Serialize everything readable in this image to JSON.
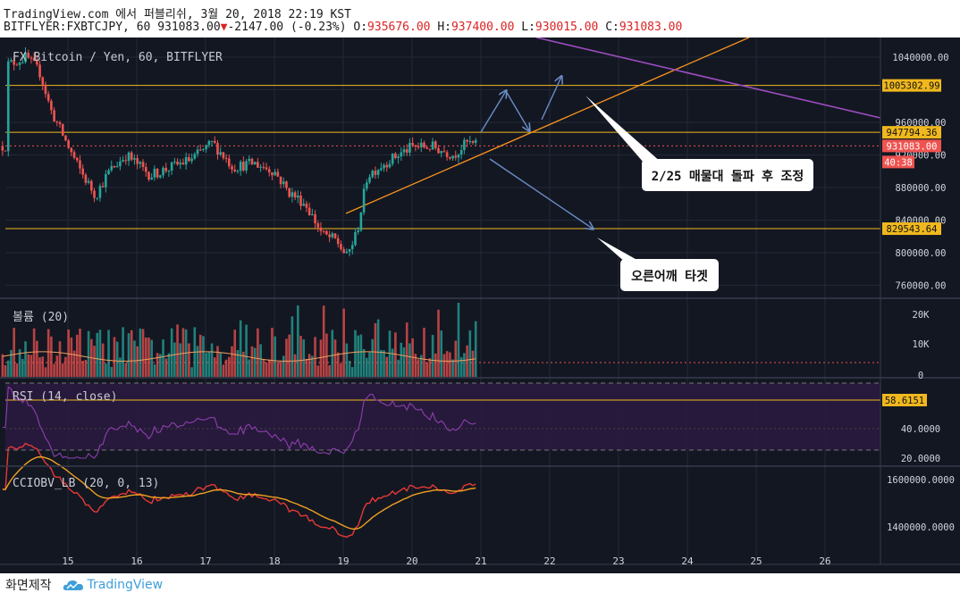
{
  "header": {
    "line1": "TradingView.com 에서 퍼블리쉬, 3월 20, 2018 22:19 KST",
    "symbol": "BITFLYER:FXBTCJPY, 60",
    "last": "931083.00",
    "change": "-2147.00",
    "change_pct": "(-0.23%)",
    "open_label": "O:",
    "open": "935676.00",
    "high_label": "H:",
    "high": "937400.00",
    "low_label": "L:",
    "low": "930015.00",
    "close_label": "C:",
    "close": "931083.00"
  },
  "colors": {
    "background": "#131722",
    "up": "#26a69a",
    "down": "#ef5350",
    "hline": "#f0b81e",
    "trend": "#f7921e",
    "purple": "#9c4dbf",
    "arrow": "#6b8dc6",
    "rsi": "#8e3fb0",
    "obv_red": "#e53935",
    "obv_green": "#4caf50",
    "obv_orange": "#f0a020"
  },
  "price_pane": {
    "title": "FX Bitcoin / Yen, 60, BITFLYER",
    "price_ticks": [
      "1040000.00",
      "960000.00",
      "920000.00",
      "880000.00",
      "840000.00",
      "800000.00",
      "760000.00"
    ],
    "hlines": [
      {
        "label": "1005302.99"
      },
      {
        "label": "947794.36"
      },
      {
        "label": "829543.64"
      }
    ],
    "last_price_label": "931083.00",
    "countdown": "40:38",
    "annotations": [
      "2/25 매물대 돌파 후 조정",
      "오른어깨 타겟"
    ]
  },
  "volume_pane": {
    "title": "볼륨 (20)",
    "ticks": [
      "20K",
      "10K",
      "0"
    ]
  },
  "rsi_pane": {
    "title": "RSI (14, close)",
    "value_label": "58.6151",
    "ticks": [
      "40.0000",
      "20.0000"
    ]
  },
  "obv_pane": {
    "title": "CCIOBV_LB (20, 0, 13)",
    "ticks": [
      "1600000.0000",
      "1400000.0000"
    ]
  },
  "time_axis": {
    "labels": [
      "15",
      "16",
      "17",
      "18",
      "19",
      "20",
      "21",
      "22",
      "23",
      "24",
      "25",
      "26"
    ]
  },
  "chart_data": {
    "type": "candlestick",
    "title": "FX Bitcoin / Yen, 60, BITFLYER",
    "x_axis_days": [
      "15",
      "16",
      "17",
      "18",
      "19",
      "20",
      "21",
      "22",
      "23",
      "24",
      "25",
      "26"
    ],
    "price_range": [
      740000,
      1060000
    ],
    "close_path": [
      {
        "day": 14.1,
        "close": 1030000
      },
      {
        "day": 14.4,
        "close": 1040000
      },
      {
        "day": 14.6,
        "close": 1020000
      },
      {
        "day": 14.75,
        "close": 975000
      },
      {
        "day": 14.95,
        "close": 940000
      },
      {
        "day": 15.15,
        "close": 905000
      },
      {
        "day": 15.4,
        "close": 870000
      },
      {
        "day": 15.6,
        "close": 900000
      },
      {
        "day": 15.85,
        "close": 920000
      },
      {
        "day": 16.2,
        "close": 895000
      },
      {
        "day": 16.5,
        "close": 905000
      },
      {
        "day": 16.8,
        "close": 915000
      },
      {
        "day": 17.1,
        "close": 935000
      },
      {
        "day": 17.4,
        "close": 905000
      },
      {
        "day": 17.7,
        "close": 910000
      },
      {
        "day": 18.0,
        "close": 900000
      },
      {
        "day": 18.2,
        "close": 875000
      },
      {
        "day": 18.45,
        "close": 860000
      },
      {
        "day": 18.7,
        "close": 822000
      },
      {
        "day": 18.9,
        "close": 815000
      },
      {
        "day": 19.05,
        "close": 795000
      },
      {
        "day": 19.2,
        "close": 825000
      },
      {
        "day": 19.35,
        "close": 895000
      },
      {
        "day": 19.6,
        "close": 910000
      },
      {
        "day": 19.8,
        "close": 920000
      },
      {
        "day": 20.0,
        "close": 930000
      },
      {
        "day": 20.3,
        "close": 930000
      },
      {
        "day": 20.6,
        "close": 920000
      },
      {
        "day": 20.8,
        "close": 935000
      },
      {
        "day": 20.95,
        "close": 931083
      }
    ],
    "horizontal_levels": [
      1005302.99,
      947794.36,
      829543.64
    ],
    "last_price": 931083.0,
    "volume_ticks": [
      "20K",
      "10K",
      "0"
    ],
    "rsi_last": 58.6151,
    "obv_ticks": [
      1600000,
      1400000
    ]
  }
}
